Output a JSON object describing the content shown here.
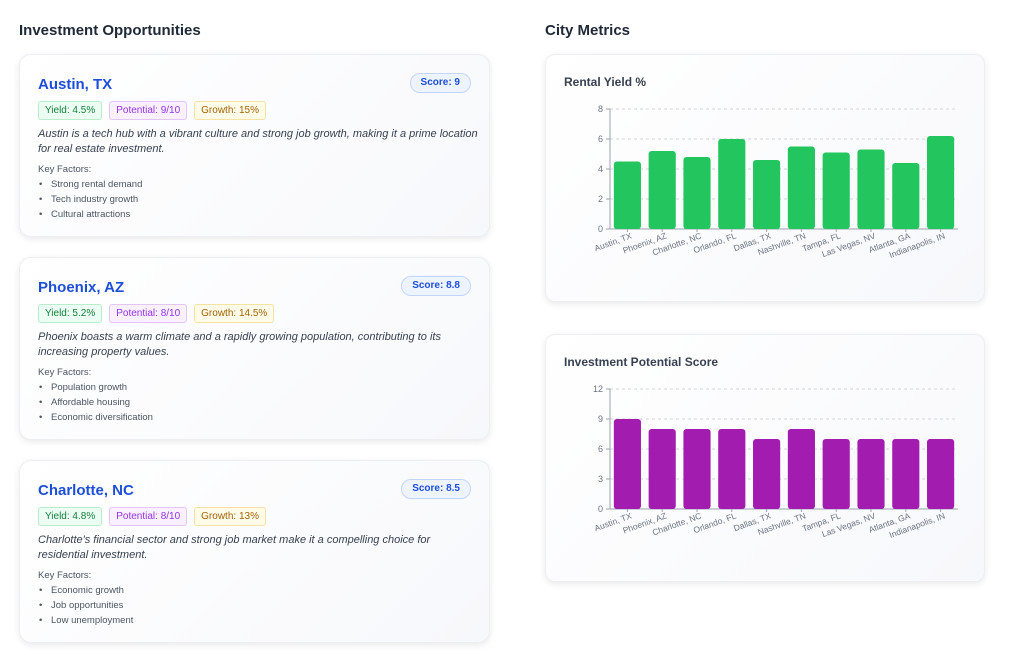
{
  "sections": {
    "left_title": "Investment Opportunities",
    "right_title": "City Metrics"
  },
  "cards": [
    {
      "city": "Austin, TX",
      "score": "Score: 9",
      "yield": "Yield: 4.5%",
      "potential": "Potential: 9/10",
      "growth": "Growth: 15%",
      "description": "Austin is a tech hub with a vibrant culture and strong job growth, making it a prime location for real estate investment.",
      "factors_label": "Key Factors:",
      "factors": [
        "Strong rental demand",
        "Tech industry growth",
        "Cultural attractions"
      ]
    },
    {
      "city": "Phoenix, AZ",
      "score": "Score: 8.8",
      "yield": "Yield: 5.2%",
      "potential": "Potential: 8/10",
      "growth": "Growth: 14.5%",
      "description": "Phoenix boasts a warm climate and a rapidly growing population, contributing to its increasing property values.",
      "factors_label": "Key Factors:",
      "factors": [
        "Population growth",
        "Affordable housing",
        "Economic diversification"
      ]
    },
    {
      "city": "Charlotte, NC",
      "score": "Score: 8.5",
      "yield": "Yield: 4.8%",
      "potential": "Potential: 8/10",
      "growth": "Growth: 13%",
      "description": "Charlotte's financial sector and strong job market make it a compelling choice for residential investment.",
      "factors_label": "Key Factors:",
      "factors": [
        "Economic growth",
        "Job opportunities",
        "Low unemployment"
      ]
    }
  ],
  "chart_data": [
    {
      "type": "bar",
      "title": "Rental Yield %",
      "color": "#22c55e",
      "categories": [
        "Austin, TX",
        "Phoenix, AZ",
        "Charlotte, NC",
        "Orlando, FL",
        "Dallas, TX",
        "Nashville, TN",
        "Tampa, FL",
        "Las Vegas, NV",
        "Atlanta, GA",
        "Indianapolis, IN"
      ],
      "values": [
        4.5,
        5.2,
        4.8,
        6.0,
        4.6,
        5.5,
        5.1,
        5.3,
        4.4,
        6.2
      ],
      "ylim": [
        0,
        8
      ],
      "yticks": [
        0,
        2,
        4,
        6,
        8
      ],
      "grid": true
    },
    {
      "type": "bar",
      "title": "Investment Potential Score",
      "color": "#a21caf",
      "categories": [
        "Austin, TX",
        "Phoenix, AZ",
        "Charlotte, NC",
        "Orlando, FL",
        "Dallas, TX",
        "Nashville, TN",
        "Tampa, FL",
        "Las Vegas, NV",
        "Atlanta, GA",
        "Indianapolis, IN"
      ],
      "values": [
        9,
        8,
        8,
        8,
        7,
        8,
        7,
        7,
        7,
        7
      ],
      "ylim": [
        0,
        12
      ],
      "yticks": [
        0,
        3,
        6,
        9,
        12
      ],
      "grid": true
    }
  ]
}
